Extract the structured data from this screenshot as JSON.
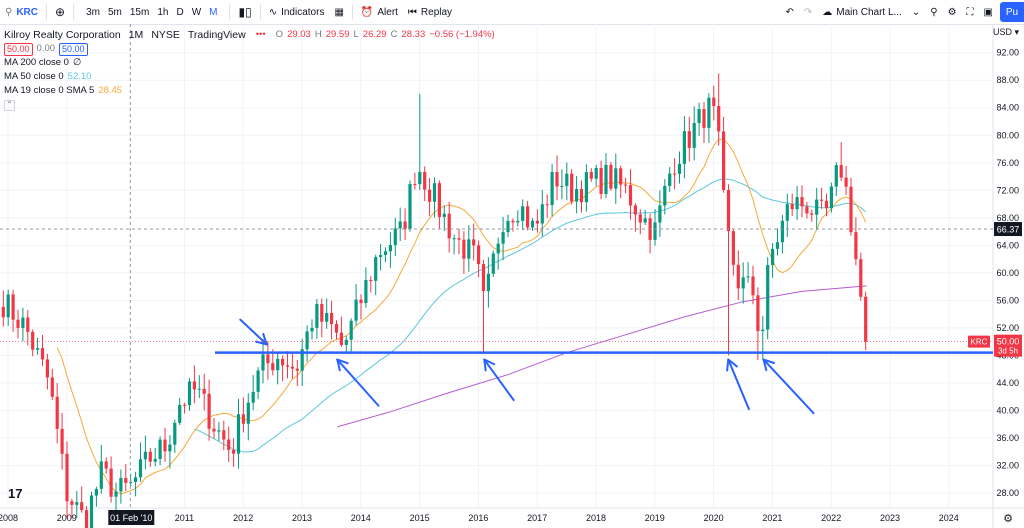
{
  "toolbar": {
    "symbol": "KRC",
    "intervals": [
      "3m",
      "5m",
      "15m",
      "1h",
      "D",
      "W",
      "M"
    ],
    "active_interval": "M",
    "indicators_label": "Indicators",
    "alert_label": "Alert",
    "replay_label": "Replay",
    "layout_label": "Main Chart L...",
    "publish_label": "Pu"
  },
  "legend": {
    "title": "Kilroy Realty Corporation",
    "interval": "1M",
    "exchange": "NYSE",
    "source": "TradingView",
    "bid": "50.00",
    "spread": "0.00",
    "ask": "50.00",
    "ohlc": {
      "o_label": "O",
      "o": "29.03",
      "h_label": "H",
      "h": "29.59",
      "l_label": "L",
      "l": "26.29",
      "c_label": "C",
      "c": "28.33",
      "change": "−0.56 (−1.94%)"
    },
    "ma200": {
      "label": "MA 200 close 0",
      "value": "∅"
    },
    "ma50": {
      "label": "MA 50 close 0",
      "value": "52.10"
    },
    "ma19": {
      "label": "MA 19 close 0 SMA 5",
      "value": "28.45"
    }
  },
  "chart_data": {
    "type": "candlestick",
    "currency": "USD",
    "ylim": [
      24,
      94
    ],
    "yticks": [
      "92.00",
      "88.00",
      "84.00",
      "80.00",
      "76.00",
      "72.00",
      "68.00",
      "64.00",
      "60.00",
      "56.00",
      "52.00",
      "48.00",
      "44.00",
      "40.00",
      "36.00",
      "32.00",
      "28.00"
    ],
    "xticks": [
      "2008",
      "2009",
      "2011",
      "2012",
      "2013",
      "2014",
      "2015",
      "2016",
      "2017",
      "2018",
      "2019",
      "2020",
      "2021",
      "2022",
      "2023",
      "2024"
    ],
    "x_years": [
      2008,
      2009,
      2011,
      2012,
      2013,
      2014,
      2015,
      2016,
      2017,
      2018,
      2019,
      2020,
      2021,
      2022,
      2023,
      2024
    ],
    "crosshair": {
      "date_label": "01 Feb '10",
      "year": 2010.08,
      "price": 66.37,
      "price_label": "66.37"
    },
    "last_price": {
      "label": "KRC",
      "value": "50.00",
      "countdown": "3d 5h",
      "price": 50.0
    },
    "support_level": 48.4,
    "colors": {
      "up": "#089981",
      "down": "#f23645",
      "ma19": "#f7a93a",
      "ma50": "#5bc8dc",
      "ma200": "#b45bd1",
      "annotation": "#2962ff"
    },
    "arrows": [
      {
        "from": [
          2011.95,
          53.2
        ],
        "to": [
          2012.4,
          49.6
        ]
      },
      {
        "from": [
          2014.3,
          40.7
        ],
        "to": [
          2013.6,
          47.4
        ]
      },
      {
        "from": [
          2016.6,
          41.5
        ],
        "to": [
          2016.1,
          47.4
        ]
      },
      {
        "from": [
          2020.6,
          40.2
        ],
        "to": [
          2020.25,
          47.4
        ]
      },
      {
        "from": [
          2021.7,
          39.6
        ],
        "to": [
          2020.85,
          47.4
        ]
      }
    ],
    "anchors": [
      [
        2007.9,
        56
      ],
      [
        2008.3,
        52
      ],
      [
        2008.7,
        44
      ],
      [
        2009.0,
        28
      ],
      [
        2009.3,
        24
      ],
      [
        2009.6,
        31
      ],
      [
        2009.85,
        28
      ],
      [
        2010.1,
        29
      ],
      [
        2010.4,
        33
      ],
      [
        2010.7,
        35
      ],
      [
        2010.9,
        41
      ],
      [
        2011.2,
        43
      ],
      [
        2011.5,
        38
      ],
      [
        2011.8,
        34
      ],
      [
        2012.0,
        40
      ],
      [
        2012.3,
        46
      ],
      [
        2012.6,
        48
      ],
      [
        2012.9,
        46
      ],
      [
        2013.2,
        54
      ],
      [
        2013.5,
        52
      ],
      [
        2013.7,
        49
      ],
      [
        2014.0,
        56
      ],
      [
        2014.3,
        63
      ],
      [
        2014.7,
        66
      ],
      [
        2014.95,
        76
      ],
      [
        2015.3,
        70
      ],
      [
        2015.6,
        65
      ],
      [
        2015.95,
        62
      ],
      [
        2016.1,
        55
      ],
      [
        2016.4,
        68
      ],
      [
        2016.7,
        70
      ],
      [
        2016.95,
        66
      ],
      [
        2017.3,
        74
      ],
      [
        2017.6,
        72
      ],
      [
        2017.9,
        73
      ],
      [
        2018.2,
        74
      ],
      [
        2018.5,
        72
      ],
      [
        2018.8,
        68
      ],
      [
        2019.0,
        66
      ],
      [
        2019.3,
        76
      ],
      [
        2019.6,
        80
      ],
      [
        2019.9,
        84
      ],
      [
        2020.05,
        82
      ],
      [
        2020.2,
        67
      ],
      [
        2020.4,
        59
      ],
      [
        2020.7,
        57
      ],
      [
        2020.8,
        49
      ],
      [
        2020.95,
        62
      ],
      [
        2021.3,
        70
      ],
      [
        2021.6,
        70
      ],
      [
        2021.8,
        68
      ],
      [
        2021.95,
        69
      ],
      [
        2022.15,
        76
      ],
      [
        2022.3,
        70
      ],
      [
        2022.45,
        60
      ],
      [
        2022.55,
        53
      ],
      [
        2022.65,
        50
      ]
    ]
  }
}
